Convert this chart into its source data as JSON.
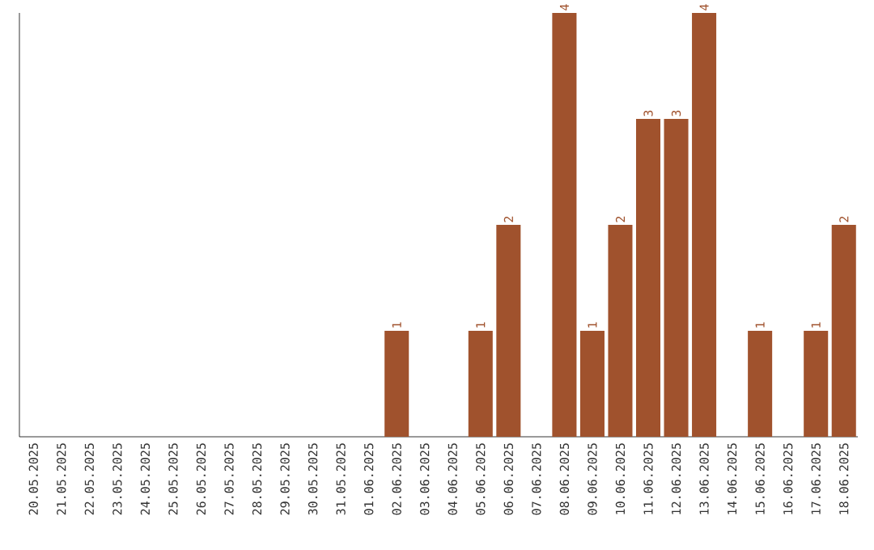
{
  "chart_data": {
    "type": "bar",
    "categories": [
      "20.05.2025",
      "21.05.2025",
      "22.05.2025",
      "23.05.2025",
      "24.05.2025",
      "25.05.2025",
      "26.05.2025",
      "27.05.2025",
      "28.05.2025",
      "29.05.2025",
      "30.05.2025",
      "31.05.2025",
      "01.06.2025",
      "02.06.2025",
      "03.06.2025",
      "04.06.2025",
      "05.06.2025",
      "06.06.2025",
      "07.06.2025",
      "08.06.2025",
      "09.06.2025",
      "10.06.2025",
      "11.06.2025",
      "12.06.2025",
      "13.06.2025",
      "14.06.2025",
      "15.06.2025",
      "16.06.2025",
      "17.06.2025",
      "18.06.2025"
    ],
    "values": [
      null,
      null,
      null,
      null,
      null,
      null,
      null,
      null,
      null,
      null,
      null,
      null,
      null,
      1,
      null,
      null,
      1,
      2,
      null,
      4,
      1,
      2,
      3,
      3,
      4,
      null,
      1,
      null,
      1,
      2
    ],
    "value_labels": [
      null,
      null,
      null,
      null,
      null,
      null,
      null,
      null,
      null,
      null,
      null,
      null,
      null,
      "1",
      null,
      null,
      "1",
      "2",
      null,
      "4",
      "1",
      "2",
      "3",
      "3",
      "4",
      null,
      "1",
      null,
      "1",
      "2"
    ],
    "color": "#a0522d"
  }
}
